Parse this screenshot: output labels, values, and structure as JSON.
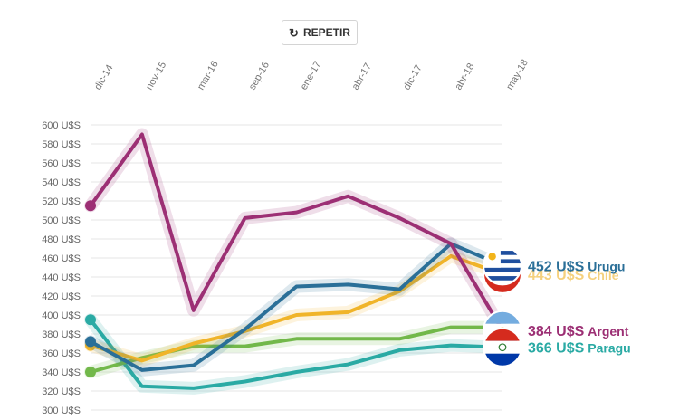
{
  "controls": {
    "repeat_label": "REPETIR",
    "repeat_icon": "replay-icon"
  },
  "chart_data": {
    "type": "line",
    "x_tick_labels": [
      "dic-14",
      "nov-15",
      "mar-16",
      "sep-16",
      "ene-17",
      "abr-17",
      "dic-17",
      "abr-18",
      "may-18"
    ],
    "y_tick_labels": [
      "600 U$S",
      "580 U$S",
      "560 U$S",
      "540 U$S",
      "520 U$S",
      "500 U$S",
      "480 U$S",
      "460 U$S",
      "440 U$S",
      "420 U$S",
      "400 U$S",
      "380 U$S",
      "360 U$S",
      "340 U$S",
      "320 U$S",
      "300 U$S"
    ],
    "ylim": [
      300,
      600
    ],
    "grid": true,
    "series": [
      {
        "color": "#2aaaa4",
        "values": [
          395,
          325,
          323,
          330,
          340,
          348,
          363,
          368,
          366
        ],
        "end_label": {
          "value": "366 U$S",
          "name": "Paragu",
          "icon": "paraguay-flag-icon"
        }
      },
      {
        "color": "#72b84a",
        "values": [
          340,
          355,
          367,
          367,
          375,
          375,
          375,
          387,
          387
        ],
        "end_label": null
      },
      {
        "color": "#f0b429",
        "values": [
          368,
          352,
          370,
          383,
          400,
          403,
          425,
          462,
          443
        ],
        "end_label": {
          "value": "443 U$S",
          "name": "Chile",
          "icon": "chile-flag-icon"
        }
      },
      {
        "color": "#2a6f98",
        "values": [
          372,
          342,
          347,
          385,
          430,
          432,
          427,
          475,
          452
        ],
        "end_label": {
          "value": "452 U$S",
          "name": "Urugu",
          "icon": "uruguay-flag-icon"
        }
      },
      {
        "color": "#9c2f74",
        "values": [
          515,
          590,
          405,
          502,
          508,
          525,
          502,
          475,
          384
        ],
        "end_label": {
          "value": "384 U$S",
          "name": "Argent",
          "icon": "argentina-flag-icon"
        }
      }
    ]
  }
}
